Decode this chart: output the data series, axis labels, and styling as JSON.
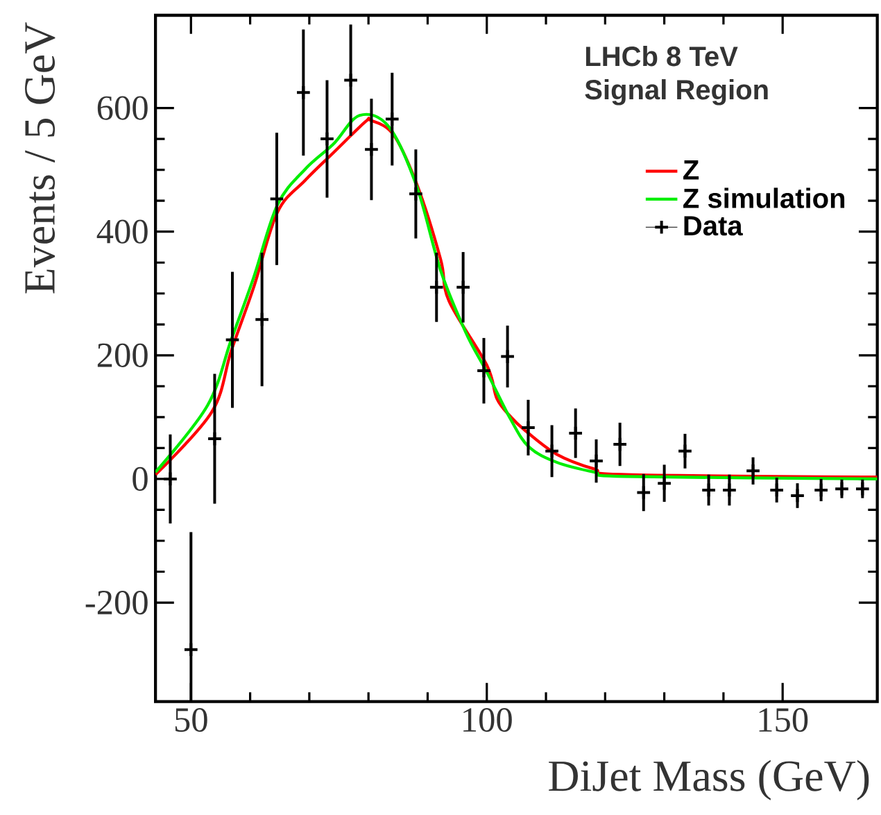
{
  "chart_data": {
    "type": "line",
    "xlabel": "DiJet Mass (GeV)",
    "ylabel": "Events / 5 GeV",
    "xlim": [
      44,
      166
    ],
    "ylim": [
      -360,
      750
    ],
    "xticks": [
      50,
      100,
      150
    ],
    "yticks": [
      -200,
      0,
      200,
      400,
      600
    ],
    "legend": "top right",
    "annotations": [
      "LHCb 8 TeV",
      "Signal Region"
    ],
    "series": [
      {
        "name": "Z",
        "color": "#ff0000",
        "marker": "none",
        "line_style": "solid",
        "x": [
          44,
          53.5,
          56.8,
          60.6,
          64.6,
          69.3,
          74.1,
          79.5,
          80.4,
          84.2,
          88.2,
          92.2,
          93.6,
          100,
          101.7,
          104,
          106.4,
          111.8,
          118.2,
          123.6,
          166
        ],
        "values": [
          7,
          108,
          207,
          310,
          431,
          483,
          528,
          578,
          580,
          557,
          476,
          355,
          288,
          184,
          130,
          101,
          79,
          40,
          16,
          7,
          3
        ]
      },
      {
        "name": "Z simulation",
        "color": "#00ee00",
        "marker": "none",
        "line_style": "solid",
        "x": [
          44,
          52.8,
          56.8,
          60.6,
          64.6,
          69.3,
          74.1,
          78.5,
          83.5,
          88.2,
          92.2,
          96.5,
          100,
          104,
          107.1,
          111.8,
          118.2,
          123.6,
          166
        ],
        "values": [
          11,
          119,
          225,
          326,
          443,
          501,
          542,
          588,
          569,
          472,
          337,
          236,
          173,
          97,
          52,
          27,
          11,
          4,
          0
        ]
      },
      {
        "name": "Data",
        "color": "#000000",
        "type": "scatter",
        "marker": "cross",
        "x": [
          46.5,
          50,
          54,
          57,
          62,
          64.5,
          69,
          73,
          77,
          80.5,
          84,
          88,
          91.5,
          96,
          99.5,
          103.5,
          107,
          111,
          115,
          118.5,
          122.5,
          126.5,
          130,
          133.5,
          137.5,
          141,
          145,
          149,
          152.5,
          156.5,
          160,
          163.5
        ],
        "values": [
          0,
          -276,
          65,
          225,
          258,
          453,
          625,
          550,
          645,
          533,
          582,
          461,
          310,
          310,
          175,
          198,
          83,
          45,
          74,
          29,
          56,
          -22,
          -7,
          45,
          -18,
          -18,
          13,
          -18,
          -27,
          -18,
          -16,
          -16
        ],
        "errors": [
          72,
          190,
          105,
          110,
          108,
          107,
          102,
          95,
          90,
          82,
          75,
          72,
          56,
          57,
          53,
          50,
          45,
          42,
          40,
          35,
          35,
          30,
          30,
          28,
          25,
          25,
          22,
          20,
          20,
          18,
          15,
          15
        ]
      }
    ]
  }
}
